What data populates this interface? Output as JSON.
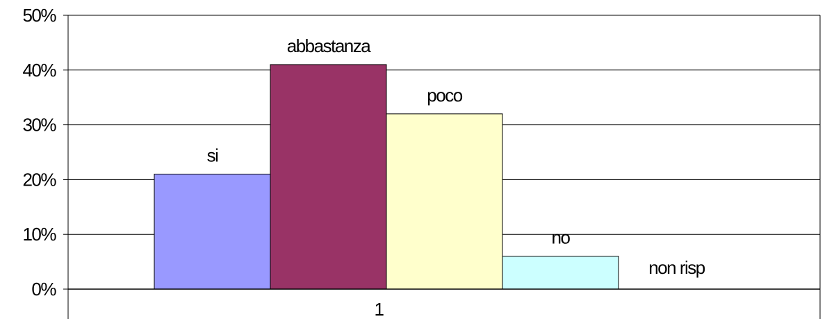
{
  "chart_data": {
    "type": "bar",
    "categories": [
      "1"
    ],
    "series": [
      {
        "name": "si",
        "values": [
          0.21
        ],
        "color": "#9999FF"
      },
      {
        "name": "abbastanza",
        "values": [
          0.41
        ],
        "color": "#993366"
      },
      {
        "name": "poco",
        "values": [
          0.32
        ],
        "color": "#FFFFCC"
      },
      {
        "name": "no",
        "values": [
          0.06
        ],
        "color": "#CCFFFF"
      },
      {
        "name": "non risp",
        "values": [
          0.0
        ],
        "color": "#660066"
      }
    ],
    "title": "",
    "xlabel": "",
    "ylabel": "",
    "ylim": [
      0,
      0.5
    ],
    "yticks": [
      "0%",
      "10%",
      "20%",
      "30%",
      "40%",
      "50%"
    ],
    "grid": true,
    "legend": "none"
  }
}
